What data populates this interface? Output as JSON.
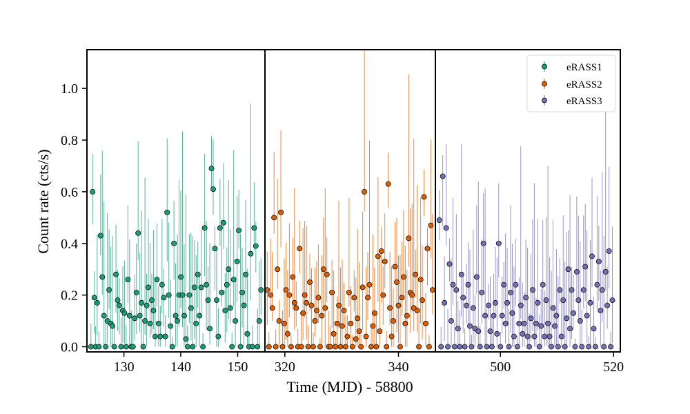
{
  "colors": {
    "eRASS1": "#1b9e77",
    "eRASS2": "#d95f02",
    "eRASS3": "#7570b3",
    "axes": "#000000",
    "marker_edge": "#000000"
  },
  "chart_data": {
    "type": "scatter",
    "title": "",
    "xlabel": "Time (MJD) - 58800",
    "ylabel": "Count rate (cts/s)",
    "ylim": [
      -0.02,
      1.15
    ],
    "yticks": [
      0.0,
      0.2,
      0.4,
      0.6,
      0.8,
      1.0
    ],
    "ytick_labels": [
      "0.0",
      "0.2",
      "0.4",
      "0.6",
      "0.8",
      "1.0"
    ],
    "grid": false,
    "legend": {
      "position": "top-right",
      "entries": [
        "eRASS1",
        "eRASS2",
        "eRASS3"
      ],
      "marker": "circle with vertical error bar"
    },
    "panels": [
      {
        "name": "eRASS1",
        "xlim": [
          123.5,
          154.8
        ],
        "xticks": [
          130,
          140,
          150
        ],
        "xtick_labels": [
          "130",
          "140",
          "150"
        ],
        "color_key": "eRASS1",
        "x": [
          124.2,
          124.5,
          124.8,
          125.0,
          125.3,
          125.6,
          125.9,
          126.2,
          126.5,
          126.8,
          127.1,
          127.4,
          127.7,
          128.0,
          128.3,
          128.6,
          128.9,
          129.2,
          129.5,
          129.8,
          130.1,
          130.4,
          130.7,
          131.0,
          131.3,
          131.6,
          131.9,
          132.2,
          132.5,
          132.8,
          133.1,
          133.4,
          133.7,
          134.0,
          134.3,
          134.6,
          134.9,
          135.2,
          135.5,
          135.8,
          136.1,
          136.4,
          136.7,
          137.0,
          137.3,
          137.6,
          137.9,
          138.2,
          138.5,
          138.8,
          139.1,
          139.4,
          139.7,
          140.0,
          140.3,
          140.6,
          140.9,
          141.2,
          141.5,
          141.8,
          142.1,
          142.4,
          142.7,
          143.0,
          143.3,
          143.6,
          143.9,
          144.2,
          144.5,
          144.8,
          145.1,
          145.4,
          145.7,
          146.0,
          146.3,
          146.6,
          146.9,
          147.2,
          147.5,
          147.8,
          148.1,
          148.4,
          148.7,
          149.0,
          149.3,
          149.6,
          149.9,
          150.2,
          150.5,
          150.8,
          151.1,
          151.4,
          151.7,
          152.0,
          152.3,
          152.6,
          152.9,
          153.2,
          153.5,
          153.8,
          154.1
        ],
        "y": [
          0.0,
          0.6,
          0.19,
          0.0,
          0.17,
          0.0,
          0.43,
          0.27,
          0.12,
          0.0,
          0.1,
          0.22,
          0.09,
          0.08,
          0.0,
          0.28,
          0.18,
          0.16,
          0.0,
          0.14,
          0.13,
          0.0,
          0.26,
          0.12,
          0.0,
          0.0,
          0.11,
          0.21,
          0.44,
          0.12,
          0.17,
          0.0,
          0.1,
          0.16,
          0.23,
          0.09,
          0.18,
          0.14,
          0.04,
          0.26,
          0.09,
          0.04,
          0.24,
          0.19,
          0.04,
          0.52,
          0.2,
          0.08,
          0.0,
          0.4,
          0.12,
          0.1,
          0.2,
          0.27,
          0.2,
          0.12,
          0.03,
          0.0,
          0.2,
          0.15,
          0.0,
          0.23,
          0.09,
          0.28,
          0.12,
          0.23,
          0.0,
          0.46,
          0.24,
          0.18,
          0.07,
          0.69,
          0.61,
          0.38,
          0.18,
          0.04,
          0.46,
          0.21,
          0.48,
          0.14,
          0.24,
          0.3,
          0.15,
          0.0,
          0.26,
          0.1,
          0.33,
          0.45,
          0.0,
          0.21,
          0.16,
          0.28,
          0.05,
          0.0,
          0.36,
          0.0,
          0.46,
          0.39,
          0.0,
          0.1,
          0.22
        ]
      },
      {
        "name": "eRASS2",
        "xlim": [
          316.5,
          346.5
        ],
        "xticks": [
          320,
          340
        ],
        "xtick_labels": [
          "320",
          "340"
        ],
        "color_key": "eRASS2",
        "x": [
          316.9,
          317.2,
          317.5,
          317.8,
          318.1,
          318.4,
          318.7,
          319.0,
          319.3,
          319.6,
          319.9,
          320.2,
          320.5,
          320.8,
          321.1,
          321.4,
          321.7,
          322.0,
          322.3,
          322.6,
          322.9,
          323.2,
          323.5,
          323.8,
          324.1,
          324.4,
          324.7,
          325.0,
          325.3,
          325.6,
          325.9,
          326.2,
          326.5,
          326.8,
          327.1,
          327.4,
          327.7,
          328.0,
          328.3,
          328.6,
          328.9,
          329.2,
          329.5,
          329.8,
          330.1,
          330.4,
          330.7,
          331.0,
          331.3,
          331.6,
          331.9,
          332.2,
          332.5,
          332.8,
          333.1,
          333.4,
          333.7,
          334.0,
          334.3,
          334.6,
          334.9,
          335.2,
          335.5,
          335.8,
          336.1,
          336.4,
          336.7,
          337.0,
          337.3,
          337.6,
          337.9,
          338.2,
          338.5,
          338.8,
          339.1,
          339.4,
          339.7,
          340.0,
          340.3,
          340.6,
          340.9,
          341.2,
          341.5,
          341.8,
          342.1,
          342.4,
          342.7,
          343.0,
          343.3,
          343.6,
          343.9,
          344.2,
          344.5,
          344.8,
          345.1,
          345.4,
          345.7,
          346.0
        ],
        "y": [
          0.22,
          0.0,
          0.2,
          0.15,
          0.5,
          0.0,
          0.3,
          0.1,
          0.52,
          0.0,
          0.09,
          0.22,
          0.05,
          0.2,
          0.0,
          0.27,
          0.17,
          0.15,
          0.0,
          0.38,
          0.0,
          0.13,
          0.2,
          0.17,
          0.0,
          0.25,
          0.16,
          0.0,
          0.1,
          0.14,
          0.19,
          0.0,
          0.12,
          0.3,
          0.15,
          0.28,
          0.0,
          0.0,
          0.21,
          0.05,
          0.0,
          0.09,
          0.16,
          0.0,
          0.08,
          0.14,
          0.0,
          0.04,
          0.21,
          0.09,
          0.0,
          0.19,
          0.03,
          0.11,
          0.06,
          0.0,
          0.23,
          0.6,
          0.04,
          0.19,
          0.24,
          0.0,
          0.08,
          0.13,
          0.0,
          0.35,
          0.06,
          0.37,
          0.2,
          0.33,
          0.0,
          0.63,
          0.15,
          0.04,
          0.1,
          0.31,
          0.25,
          0.16,
          0.0,
          0.19,
          0.27,
          0.09,
          0.12,
          0.42,
          0.21,
          0.2,
          0.15,
          0.28,
          0.14,
          0.0,
          0.26,
          0.18,
          0.58,
          0.09,
          0.38,
          0.0,
          0.47,
          0.22
        ]
      },
      {
        "name": "eRASS3",
        "xlim": [
          488.5,
          521.2
        ],
        "xticks": [
          500,
          520
        ],
        "xtick_labels": [
          "500",
          "520"
        ],
        "color_key": "eRASS3",
        "x": [
          489.2,
          489.5,
          489.8,
          490.1,
          490.4,
          490.7,
          491.0,
          491.3,
          491.6,
          491.9,
          492.2,
          492.5,
          492.8,
          493.1,
          493.4,
          493.7,
          494.0,
          494.3,
          494.6,
          494.9,
          495.2,
          495.5,
          495.8,
          496.1,
          496.4,
          496.7,
          497.0,
          497.3,
          497.6,
          497.9,
          498.2,
          498.5,
          498.8,
          499.1,
          499.4,
          499.7,
          500.0,
          500.3,
          500.6,
          500.9,
          501.2,
          501.5,
          501.8,
          502.1,
          502.4,
          502.7,
          503.0,
          503.3,
          503.6,
          503.9,
          504.2,
          504.5,
          504.8,
          505.1,
          505.4,
          505.7,
          506.0,
          506.3,
          506.6,
          506.9,
          507.2,
          507.5,
          507.8,
          508.1,
          508.4,
          508.7,
          509.0,
          509.3,
          509.6,
          509.9,
          510.2,
          510.5,
          510.8,
          511.1,
          511.4,
          511.7,
          512.0,
          512.3,
          512.6,
          512.9,
          513.2,
          513.5,
          513.8,
          514.1,
          514.4,
          514.7,
          515.0,
          515.3,
          515.6,
          515.9,
          516.2,
          516.5,
          516.8,
          517.1,
          517.4,
          517.7,
          518.0,
          518.3,
          518.6,
          518.9,
          519.2,
          519.5,
          519.8
        ],
        "y": [
          0.49,
          0.0,
          0.66,
          0.17,
          0.46,
          0.0,
          0.32,
          0.1,
          0.24,
          0.0,
          0.22,
          0.07,
          0.0,
          0.28,
          0.19,
          0.0,
          0.16,
          0.24,
          0.08,
          0.0,
          0.15,
          0.07,
          0.27,
          0.06,
          0.0,
          0.21,
          0.4,
          0.12,
          0.0,
          0.16,
          0.06,
          0.0,
          0.12,
          0.17,
          0.05,
          0.4,
          0.0,
          0.12,
          0.24,
          0.09,
          0.17,
          0.0,
          0.21,
          0.13,
          0.04,
          0.24,
          0.0,
          0.09,
          0.16,
          0.05,
          0.09,
          0.19,
          0.04,
          0.0,
          0.11,
          0.22,
          0.04,
          0.09,
          0.17,
          0.0,
          0.08,
          0.24,
          0.04,
          0.18,
          0.09,
          0.04,
          0.0,
          0.15,
          0.08,
          0.12,
          0.0,
          0.22,
          0.04,
          0.18,
          0.0,
          0.11,
          0.3,
          0.07,
          0.22,
          0.13,
          0.0,
          0.29,
          0.18,
          0.1,
          0.0,
          0.22,
          0.31,
          0.12,
          0.0,
          0.17,
          0.35,
          0.07,
          0.0,
          0.24,
          0.33,
          0.14,
          0.22,
          0.0,
          0.29,
          0.16,
          0.37,
          0.0,
          0.18
        ]
      }
    ]
  }
}
